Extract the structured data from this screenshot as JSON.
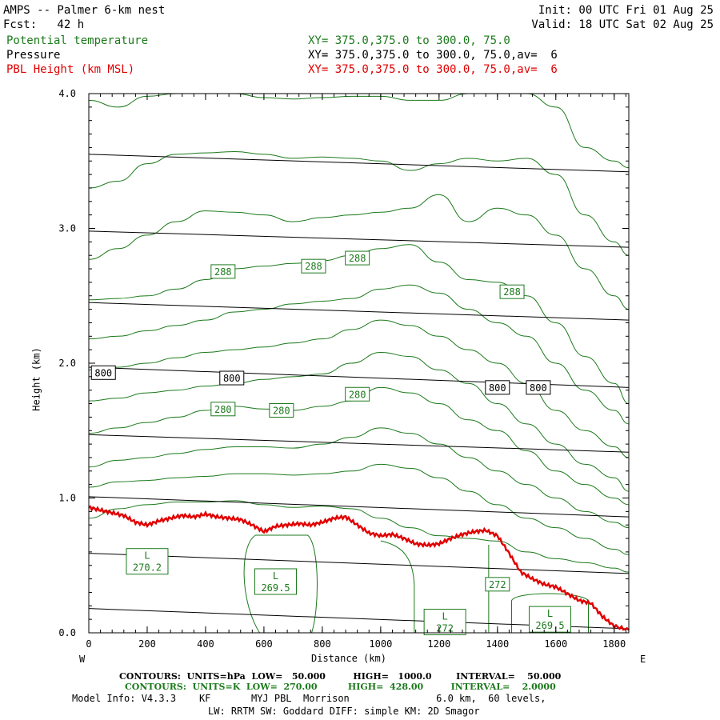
{
  "header": {
    "title": "AMPS -- Palmer 6-km nest",
    "init": "Init: 00 UTC Fri 01 Aug 25",
    "fcst": "Fcst:   42 h",
    "valid": "Valid: 18 UTC Sat 02 Aug 25",
    "fields": [
      {
        "name": "Potential temperature",
        "xy": "XY= 375.0,375.0 to 300.0, 75.0",
        "color": "#1c7a1c"
      },
      {
        "name": "Pressure",
        "xy": "XY= 375.0,375.0 to 300.0, 75.0,av=  6",
        "color": "#000000"
      },
      {
        "name": "PBL Height (km MSL)",
        "xy": "XY= 375.0,375.0 to 300.0, 75.0,av=  6",
        "color": "#e00000"
      }
    ]
  },
  "chart_data": {
    "type": "line",
    "xlabel": "Distance (km)",
    "ylabel": "Height (km)",
    "xlim": [
      0,
      1850
    ],
    "ylim": [
      0.0,
      4.0
    ],
    "x_ticks": [
      "0",
      "200",
      "400",
      "600",
      "800",
      "1000",
      "1200",
      "1400",
      "1600",
      "1800"
    ],
    "y_ticks": [
      "0.0",
      "1.0",
      "2.0",
      "3.0",
      "4.0"
    ],
    "left_end_label": "W",
    "right_end_label": "E",
    "pbl_height": {
      "name": "PBL Height (km MSL)",
      "color": "#e00000",
      "x": [
        0,
        40,
        80,
        120,
        160,
        200,
        240,
        280,
        320,
        360,
        400,
        440,
        480,
        520,
        560,
        600,
        640,
        680,
        720,
        760,
        800,
        840,
        880,
        920,
        960,
        1000,
        1040,
        1080,
        1120,
        1160,
        1200,
        1240,
        1280,
        1320,
        1360,
        1400,
        1440,
        1480,
        1520,
        1560,
        1600,
        1640,
        1680,
        1720,
        1760,
        1800,
        1850
      ],
      "y": [
        0.93,
        0.91,
        0.89,
        0.87,
        0.82,
        0.8,
        0.83,
        0.85,
        0.87,
        0.86,
        0.88,
        0.86,
        0.85,
        0.84,
        0.8,
        0.75,
        0.79,
        0.8,
        0.81,
        0.8,
        0.82,
        0.85,
        0.86,
        0.8,
        0.74,
        0.72,
        0.73,
        0.7,
        0.66,
        0.65,
        0.66,
        0.7,
        0.73,
        0.75,
        0.76,
        0.72,
        0.59,
        0.45,
        0.4,
        0.36,
        0.34,
        0.29,
        0.24,
        0.22,
        0.12,
        0.05,
        0.02
      ]
    },
    "pressure_contours": {
      "color": "#000000",
      "levels": [
        {
          "left_y": 3.55,
          "right_y": 3.42
        },
        {
          "left_y": 2.98,
          "right_y": 2.86
        },
        {
          "left_y": 2.45,
          "right_y": 2.32
        },
        {
          "left_y": 1.97,
          "right_y": 1.82
        },
        {
          "left_y": 1.47,
          "right_y": 1.34
        },
        {
          "left_y": 1.01,
          "right_y": 0.86
        },
        {
          "left_y": 0.59,
          "right_y": 0.44
        },
        {
          "left_y": 0.18,
          "right_y": 0.03
        }
      ],
      "labels": [
        {
          "text": "800",
          "x": 50,
          "y": 1.93
        },
        {
          "text": "800",
          "x": 490,
          "y": 1.89
        },
        {
          "text": "800",
          "x": 1400,
          "y": 1.82
        },
        {
          "text": "800",
          "x": 1540,
          "y": 1.82
        }
      ]
    },
    "theta_contours": {
      "color": "#1c7a1c",
      "lines": [
        {
          "x": [
            0,
            100,
            200,
            300,
            400,
            500,
            600,
            700,
            800,
            900,
            1000,
            1100,
            1200,
            1300,
            1400,
            1500,
            1600,
            1700,
            1800,
            1850
          ],
          "y": [
            3.95,
            3.9,
            3.98,
            4.0,
            4.0,
            4.0,
            3.97,
            3.96,
            3.97,
            3.98,
            3.98,
            3.95,
            3.95,
            4.0,
            4.0,
            4.0,
            3.9,
            3.6,
            3.5,
            3.45
          ]
        },
        {
          "x": [
            0,
            100,
            200,
            300,
            400,
            500,
            600,
            700,
            800,
            900,
            1000,
            1100,
            1200,
            1300,
            1400,
            1500,
            1600,
            1700,
            1800,
            1850
          ],
          "y": [
            3.3,
            3.35,
            3.48,
            3.55,
            3.56,
            3.57,
            3.55,
            3.52,
            3.53,
            3.52,
            3.5,
            3.43,
            3.48,
            3.52,
            3.5,
            3.52,
            3.4,
            3.1,
            2.9,
            2.8
          ]
        },
        {
          "x": [
            0,
            100,
            200,
            300,
            400,
            500,
            600,
            700,
            800,
            900,
            1000,
            1100,
            1200,
            1300,
            1400,
            1500,
            1600,
            1700,
            1800,
            1850
          ],
          "y": [
            2.77,
            2.85,
            2.95,
            3.05,
            3.13,
            3.12,
            3.1,
            3.05,
            3.08,
            3.1,
            3.12,
            3.15,
            3.25,
            3.05,
            3.15,
            3.1,
            2.95,
            2.7,
            2.5,
            2.4
          ]
        },
        {
          "x": [
            0,
            100,
            200,
            300,
            400,
            500,
            600,
            700,
            800,
            900,
            1000,
            1100,
            1200,
            1300,
            1400,
            1500,
            1600,
            1700,
            1800,
            1850
          ],
          "y": [
            2.47,
            2.48,
            2.5,
            2.55,
            2.62,
            2.7,
            2.72,
            2.74,
            2.76,
            2.8,
            2.85,
            2.88,
            2.75,
            2.62,
            2.6,
            2.5,
            2.3,
            2.05,
            1.85,
            1.7
          ]
        },
        {
          "x": [
            0,
            100,
            200,
            300,
            400,
            500,
            600,
            700,
            800,
            900,
            1000,
            1100,
            1200,
            1300,
            1400,
            1500,
            1600,
            1700,
            1800,
            1850
          ],
          "y": [
            2.18,
            2.2,
            2.24,
            2.28,
            2.32,
            2.38,
            2.4,
            2.44,
            2.46,
            2.48,
            2.55,
            2.58,
            2.52,
            2.4,
            2.3,
            2.2,
            2.0,
            1.8,
            1.65,
            1.55
          ]
        },
        {
          "x": [
            0,
            100,
            200,
            300,
            400,
            500,
            600,
            700,
            800,
            900,
            1000,
            1100,
            1200,
            1300,
            1400,
            1500,
            1600,
            1700,
            1800,
            1850
          ],
          "y": [
            1.95,
            1.97,
            2.0,
            2.04,
            2.08,
            2.1,
            2.12,
            2.15,
            2.18,
            2.25,
            2.32,
            2.28,
            2.2,
            2.1,
            2.0,
            1.85,
            1.65,
            1.5,
            1.38,
            1.3
          ]
        },
        {
          "x": [
            0,
            100,
            200,
            300,
            400,
            500,
            600,
            700,
            800,
            900,
            1000,
            1100,
            1200,
            1300,
            1400,
            1500,
            1600,
            1700,
            1800,
            1850
          ],
          "y": [
            1.72,
            1.74,
            1.78,
            1.8,
            1.83,
            1.85,
            1.88,
            1.9,
            1.92,
            2.0,
            2.08,
            2.05,
            1.95,
            1.85,
            1.7,
            1.55,
            1.4,
            1.25,
            1.15,
            1.05
          ]
        },
        {
          "x": [
            0,
            100,
            200,
            300,
            400,
            500,
            600,
            700,
            800,
            900,
            1000,
            1100,
            1200,
            1300,
            1400,
            1500,
            1600,
            1700,
            1800,
            1850
          ],
          "y": [
            1.48,
            1.52,
            1.56,
            1.6,
            1.65,
            1.68,
            1.66,
            1.65,
            1.68,
            1.72,
            1.82,
            1.78,
            1.7,
            1.58,
            1.5,
            1.35,
            1.2,
            1.1,
            1.0,
            0.95
          ]
        },
        {
          "x": [
            0,
            100,
            200,
            300,
            400,
            500,
            600,
            700,
            800,
            900,
            1000,
            1100,
            1200,
            1300,
            1400,
            1500,
            1600,
            1700,
            1800,
            1850
          ],
          "y": [
            1.23,
            1.28,
            1.3,
            1.33,
            1.36,
            1.38,
            1.38,
            1.37,
            1.4,
            1.45,
            1.52,
            1.48,
            1.4,
            1.3,
            1.2,
            1.1,
            1.0,
            0.9,
            0.82,
            0.78
          ]
        },
        {
          "x": [
            0,
            100,
            200,
            300,
            400,
            500,
            600,
            700,
            800,
            900,
            1000,
            1100,
            1200,
            1300,
            1400,
            1500,
            1600,
            1700,
            1800,
            1850
          ],
          "y": [
            1.08,
            1.12,
            1.13,
            1.15,
            1.16,
            1.18,
            1.18,
            1.17,
            1.18,
            1.2,
            1.25,
            1.22,
            1.15,
            1.05,
            0.95,
            0.85,
            0.78,
            0.7,
            0.62,
            0.58
          ]
        },
        {
          "x": [
            0,
            100,
            200,
            300,
            400,
            500,
            600,
            700,
            800,
            900,
            1000,
            1100,
            1200,
            1300,
            1400,
            1500,
            1600,
            1700,
            1800,
            1850
          ],
          "y": [
            0.85,
            0.92,
            0.95,
            0.97,
            0.97,
            0.98,
            0.95,
            0.93,
            0.94,
            0.92,
            0.85,
            0.78,
            0.72,
            0.7,
            0.68,
            0.6,
            0.55,
            0.52,
            0.48,
            0.45
          ]
        }
      ],
      "labels": [
        {
          "text": "288",
          "x": 460,
          "y": 2.68
        },
        {
          "text": "288",
          "x": 770,
          "y": 2.72
        },
        {
          "text": "288",
          "x": 920,
          "y": 2.78
        },
        {
          "text": "288",
          "x": 1450,
          "y": 2.53
        },
        {
          "text": "280",
          "x": 460,
          "y": 1.66
        },
        {
          "text": "280",
          "x": 660,
          "y": 1.65
        },
        {
          "text": "280",
          "x": 920,
          "y": 1.77
        }
      ],
      "extrema": [
        {
          "mark": "L",
          "value": "270.2",
          "x": 200,
          "y": 0.53
        },
        {
          "mark": "L",
          "value": "269.5",
          "x": 640,
          "y": 0.38
        },
        {
          "mark": "L",
          "value": "272",
          "x": 1220,
          "y": 0.08
        },
        {
          "mark": "L",
          "value": "269.5",
          "x": 1580,
          "y": 0.1
        }
      ],
      "extra_labels": [
        {
          "text": "272",
          "x": 1400,
          "y": 0.36
        }
      ]
    }
  },
  "footer": {
    "contours_pressure": "CONTOURS:  UNITS=hPa  LOW=   50.000         HIGH=   1000.0        INTERVAL=    50.000",
    "contours_theta": "CONTOURS:  UNITS=K  LOW=  270.00          HIGH=  428.00         INTERVAL=    2.0000",
    "model_info": "Model Info: V4.3.3    KF       MYJ PBL  Morrison               6.0 km,  60 levels,",
    "model_info2": "LW: RRTM SW: Goddard DIFF: simple KM: 2D Smagor"
  }
}
